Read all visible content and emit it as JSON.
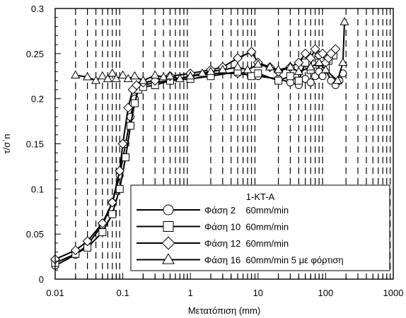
{
  "chart_data": {
    "type": "line",
    "title": "",
    "xlabel": "Μετατόπιση (mm)",
    "ylabel": "τ/σ΄n",
    "xscale": "log",
    "xlim": [
      0.01,
      1000
    ],
    "ylim": [
      0,
      0.3
    ],
    "xticks": [
      0.01,
      0.1,
      1,
      10,
      100,
      1000
    ],
    "xtick_labels": [
      "0.01",
      "0.1",
      "1",
      "10",
      "100",
      "1000"
    ],
    "yticks": [
      0,
      0.05,
      0.1,
      0.15,
      0.2,
      0.25,
      0.3
    ],
    "ytick_labels": [
      "0",
      "0.05",
      "0.1",
      "0.15",
      "0.2",
      "0.25",
      "0.3"
    ],
    "grid": "vertical dashed at log minor ticks",
    "legend": {
      "title": "1-KT-A",
      "placement": "bottom-right",
      "entries": [
        {
          "label": "Φάση 2    60mm/min",
          "marker": "circle"
        },
        {
          "label": "Φάση 10  60mm/min",
          "marker": "square"
        },
        {
          "label": "Φάση 12  60mm/min",
          "marker": "diamond"
        },
        {
          "label": "Φάση 16  60mm/min 5 με φόρτιση",
          "marker": "triangle"
        }
      ]
    },
    "series": [
      {
        "marker": "circle",
        "x": [
          0.01,
          0.02,
          0.03,
          0.05,
          0.07,
          0.09,
          0.11,
          0.13,
          0.15,
          0.17,
          0.2,
          0.3,
          0.5,
          1,
          2,
          5,
          10,
          20,
          30,
          40,
          50,
          60,
          70,
          80,
          90,
          100,
          120,
          140,
          160,
          180
        ],
        "y": [
          0.015,
          0.027,
          0.038,
          0.06,
          0.085,
          0.115,
          0.15,
          0.18,
          0.2,
          0.21,
          0.215,
          0.218,
          0.22,
          0.225,
          0.228,
          0.228,
          0.225,
          0.222,
          0.218,
          0.215,
          0.222,
          0.218,
          0.225,
          0.23,
          0.225,
          0.232,
          0.22,
          0.215,
          0.22,
          0.228
        ]
      },
      {
        "marker": "square",
        "x": [
          0.01,
          0.02,
          0.03,
          0.05,
          0.07,
          0.09,
          0.11,
          0.13,
          0.15,
          0.17,
          0.2,
          0.3,
          0.5,
          1,
          2,
          5,
          8,
          10,
          20,
          30,
          40,
          50,
          60,
          70,
          80,
          90,
          100,
          110,
          130
        ],
        "y": [
          0.018,
          0.028,
          0.035,
          0.052,
          0.072,
          0.1,
          0.135,
          0.17,
          0.195,
          0.21,
          0.213,
          0.215,
          0.22,
          0.222,
          0.225,
          0.23,
          0.225,
          0.228,
          0.22,
          0.225,
          0.22,
          0.24,
          0.232,
          0.238,
          0.24,
          0.245,
          0.235,
          0.242,
          0.248
        ]
      },
      {
        "marker": "diamond",
        "x": [
          0.01,
          0.02,
          0.03,
          0.05,
          0.07,
          0.09,
          0.1,
          0.12,
          0.14,
          0.16,
          0.2,
          0.3,
          0.5,
          1,
          2,
          3,
          5,
          8,
          10,
          15,
          20,
          30,
          40,
          50,
          60,
          70,
          80,
          90,
          100,
          110,
          120,
          140
        ],
        "y": [
          0.022,
          0.032,
          0.042,
          0.062,
          0.085,
          0.12,
          0.15,
          0.19,
          0.21,
          0.215,
          0.218,
          0.22,
          0.225,
          0.228,
          0.232,
          0.235,
          0.245,
          0.252,
          0.24,
          0.235,
          0.23,
          0.235,
          0.24,
          0.25,
          0.245,
          0.255,
          0.248,
          0.25,
          0.24,
          0.245,
          0.25,
          0.255
        ]
      },
      {
        "marker": "triangle",
        "x": [
          0.02,
          0.03,
          0.04,
          0.05,
          0.06,
          0.07,
          0.08,
          0.1,
          0.12,
          0.15,
          0.2,
          0.3,
          0.4,
          0.5,
          0.7,
          1,
          1.5,
          2,
          3,
          5,
          7,
          10,
          15,
          20,
          30,
          40,
          60,
          80,
          100,
          150,
          180,
          190
        ],
        "y": [
          0.226,
          0.224,
          0.22,
          0.225,
          0.222,
          0.228,
          0.222,
          0.226,
          0.222,
          0.225,
          0.22,
          0.226,
          0.224,
          0.225,
          0.222,
          0.225,
          0.228,
          0.23,
          0.232,
          0.235,
          0.232,
          0.238,
          0.235,
          0.232,
          0.235,
          0.23,
          0.235,
          0.24,
          0.232,
          0.22,
          0.24,
          0.285
        ]
      }
    ]
  }
}
